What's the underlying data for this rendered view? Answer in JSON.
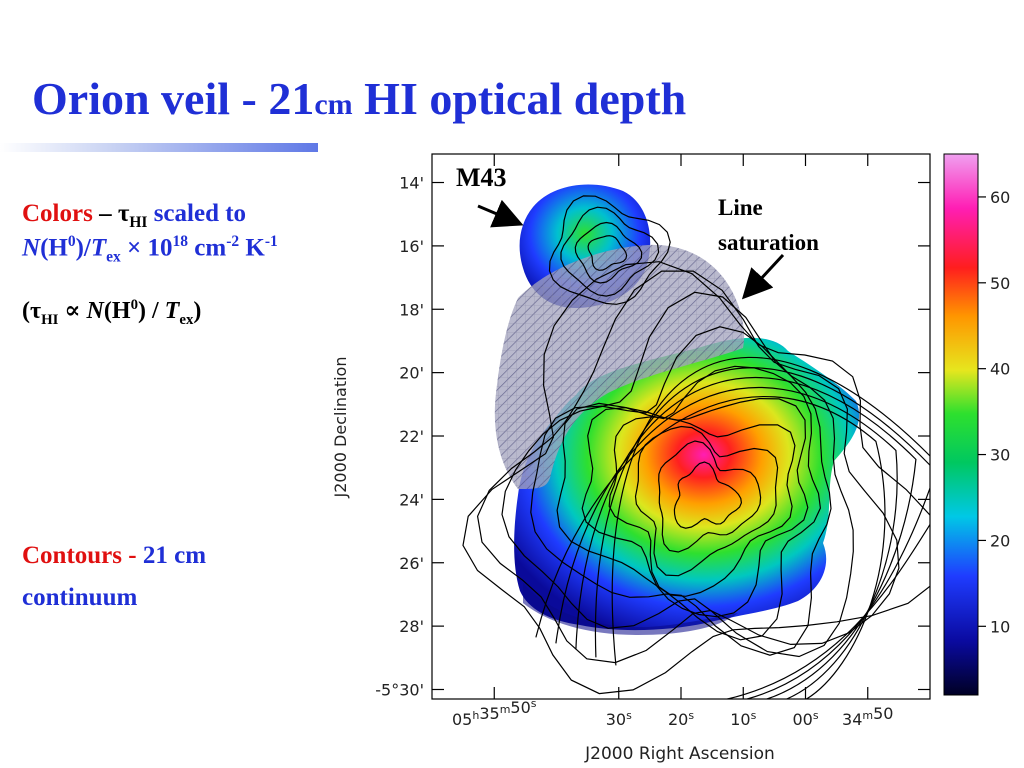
{
  "slide": {
    "title_main": "Orion veil - 21",
    "title_unit": "cm",
    "title_rest": " HI optical depth",
    "colors_label": "Colors",
    "colors_dash": " – ",
    "tau": "τ",
    "hi_sub": "HI",
    "colors_scaled": " scaled to",
    "n": "N",
    "h": "(H",
    "zero": "0",
    "close_slash": ")/",
    "t": "T",
    "ex": "ex",
    "times_ten": " × 10",
    "exp18": "18",
    "cm": " cm",
    "neg2": "-2",
    "k": " K",
    "neg1": "-1",
    "prop_open": "(",
    "propto": " ∝ ",
    "prop_h": "(H",
    "prop_slash": ") / ",
    "prop_close": ")",
    "contours_label": "Contours -",
    "contours_value": " 21 cm",
    "contours_line2": "continuum"
  },
  "annotations": {
    "m43": "M43",
    "line_saturation_1": "Line",
    "line_saturation_2": "saturation"
  },
  "chart_data": {
    "type": "heatmap",
    "title": "",
    "xlabel": "J2000 Right Ascension",
    "ylabel": "J2000 Declination",
    "x_ticks": [
      {
        "value": "05h35m50s",
        "parts": [
          "05",
          "h",
          "35",
          "m",
          "50",
          "s"
        ]
      },
      {
        "value": "30s",
        "parts": [
          "30",
          "s"
        ]
      },
      {
        "value": "20s",
        "parts": [
          "20",
          "s"
        ]
      },
      {
        "value": "10s",
        "parts": [
          "10",
          "s"
        ]
      },
      {
        "value": "00s",
        "parts": [
          "00",
          "s"
        ]
      },
      {
        "value": "34m50",
        "parts": [
          "34",
          "m",
          "50"
        ]
      }
    ],
    "x_tick_seconds": [
      50,
      30,
      20,
      10,
      0,
      -10
    ],
    "xlim_seconds": [
      60,
      -20
    ],
    "y_ticks": [
      "14'",
      "16'",
      "18'",
      "20'",
      "22'",
      "24'",
      "26'",
      "28'",
      "-5°30'"
    ],
    "y_tick_arcmin": [
      14,
      16,
      18,
      20,
      22,
      24,
      26,
      28,
      30
    ],
    "ylim_arcmin": [
      13.1,
      30.3
    ],
    "colorbar": {
      "ticks": [
        10,
        20,
        30,
        40,
        50,
        60
      ],
      "range": [
        2,
        65
      ],
      "colors": [
        "#000024",
        "#0a0aa0",
        "#1f3cff",
        "#00c8e6",
        "#00c860",
        "#2ee02e",
        "#e6e61e",
        "#ff9600",
        "#ff1e1e",
        "#ff1eb4",
        "#f0a0f0"
      ]
    },
    "regions": [
      {
        "name": "M43",
        "ra_s": 32,
        "dec_arcmin": 16.5,
        "tau_peak": 22
      },
      {
        "name": "main",
        "ra_s": 20,
        "dec_arcmin": 24,
        "tau_peak": 55
      },
      {
        "name": "line-saturation",
        "ra_s": 25,
        "dec_arcmin": 19.5
      }
    ],
    "contours_arcmin_peak": {
      "ra_s": 16,
      "dec_arcmin": 24
    }
  }
}
